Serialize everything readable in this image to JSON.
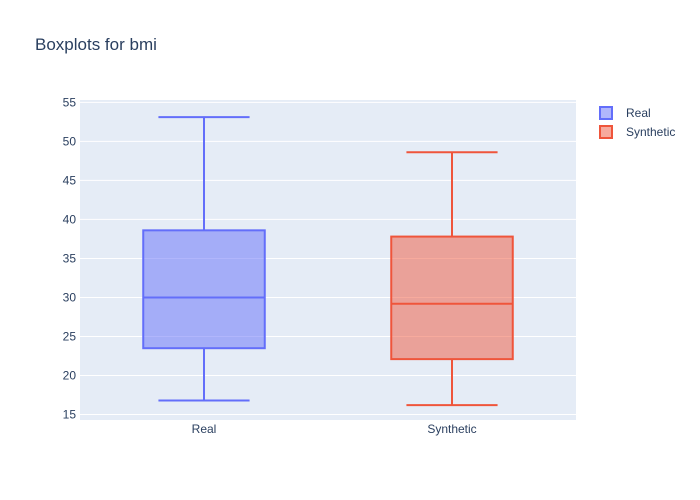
{
  "chart_data": {
    "type": "box",
    "title": "Boxplots for bmi",
    "xlabel": "",
    "ylabel": "",
    "categories": [
      "Real",
      "Synthetic"
    ],
    "ylim": [
      14.3,
      55.3
    ],
    "yticks": [
      15,
      20,
      25,
      30,
      35,
      40,
      45,
      50,
      55
    ],
    "grid": true,
    "legend_position": "top-right",
    "series": [
      {
        "name": "Real",
        "category": "Real",
        "lowerfence": 16.8,
        "q1": 23.5,
        "median": 30.0,
        "q3": 38.6,
        "upperfence": 53.1,
        "color": "#636efa"
      },
      {
        "name": "Synthetic",
        "category": "Synthetic",
        "lowerfence": 16.2,
        "q1": 22.1,
        "median": 29.2,
        "q3": 37.8,
        "upperfence": 48.6,
        "color": "#ef553b"
      }
    ]
  }
}
